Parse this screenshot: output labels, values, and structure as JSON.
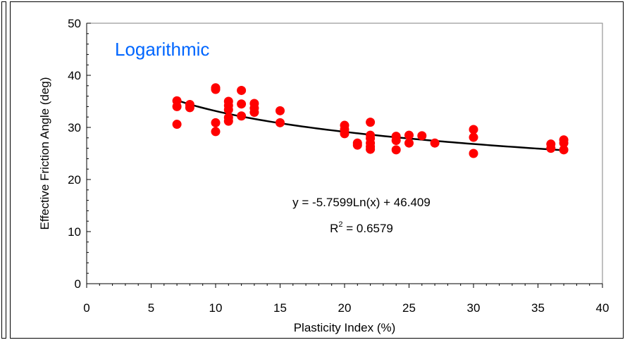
{
  "chart_data": {
    "type": "scatter",
    "title": "Logarithmic",
    "title_color": "#0066ff",
    "xlabel": "Plasticity Index (%)",
    "ylabel": "Effective Friction Angle (deg)",
    "xlim": [
      0,
      40
    ],
    "ylim": [
      0,
      50
    ],
    "x_ticks": [
      0,
      5,
      10,
      15,
      20,
      25,
      30,
      35,
      40
    ],
    "y_ticks": [
      0,
      10,
      20,
      30,
      40,
      50
    ],
    "grid": false,
    "marker_color": "#ff0000",
    "trendline_color": "#000000",
    "points": [
      {
        "x": 7,
        "y": 35.1
      },
      {
        "x": 7,
        "y": 34.0
      },
      {
        "x": 7,
        "y": 30.6
      },
      {
        "x": 8,
        "y": 34.4
      },
      {
        "x": 8,
        "y": 33.8
      },
      {
        "x": 10,
        "y": 37.6
      },
      {
        "x": 10,
        "y": 37.3
      },
      {
        "x": 10,
        "y": 30.9
      },
      {
        "x": 10,
        "y": 29.2
      },
      {
        "x": 11,
        "y": 35.0
      },
      {
        "x": 11,
        "y": 34.2
      },
      {
        "x": 11,
        "y": 33.4
      },
      {
        "x": 11,
        "y": 31.9
      },
      {
        "x": 11,
        "y": 31.2
      },
      {
        "x": 12,
        "y": 37.1
      },
      {
        "x": 12,
        "y": 34.5
      },
      {
        "x": 12,
        "y": 32.2
      },
      {
        "x": 13,
        "y": 34.6
      },
      {
        "x": 13,
        "y": 33.7
      },
      {
        "x": 13,
        "y": 32.9
      },
      {
        "x": 15,
        "y": 33.2
      },
      {
        "x": 15,
        "y": 30.9
      },
      {
        "x": 20,
        "y": 30.4
      },
      {
        "x": 20,
        "y": 29.6
      },
      {
        "x": 20,
        "y": 28.8
      },
      {
        "x": 21,
        "y": 27.0
      },
      {
        "x": 21,
        "y": 26.6
      },
      {
        "x": 22,
        "y": 31.0
      },
      {
        "x": 22,
        "y": 28.5
      },
      {
        "x": 22,
        "y": 27.9
      },
      {
        "x": 22,
        "y": 27.0
      },
      {
        "x": 22,
        "y": 26.3
      },
      {
        "x": 22,
        "y": 25.8
      },
      {
        "x": 24,
        "y": 28.3
      },
      {
        "x": 24,
        "y": 27.5
      },
      {
        "x": 24,
        "y": 25.7
      },
      {
        "x": 25,
        "y": 28.5
      },
      {
        "x": 25,
        "y": 27.0
      },
      {
        "x": 26,
        "y": 28.4
      },
      {
        "x": 27,
        "y": 27.0
      },
      {
        "x": 30,
        "y": 29.6
      },
      {
        "x": 30,
        "y": 28.1
      },
      {
        "x": 30,
        "y": 25.0
      },
      {
        "x": 36,
        "y": 26.8
      },
      {
        "x": 36,
        "y": 26.0
      },
      {
        "x": 37,
        "y": 27.6
      },
      {
        "x": 37,
        "y": 27.0
      },
      {
        "x": 37,
        "y": 25.7
      }
    ],
    "trendline": {
      "type": "logarithmic",
      "a": -5.7599,
      "b": 46.409,
      "x_range": [
        7,
        37
      ],
      "equation": "y = -5.7599Ln(x) + 46.409",
      "r2_prefix": "R",
      "r2_sup": "2",
      "r2_suffix": " = 0.6579"
    }
  }
}
